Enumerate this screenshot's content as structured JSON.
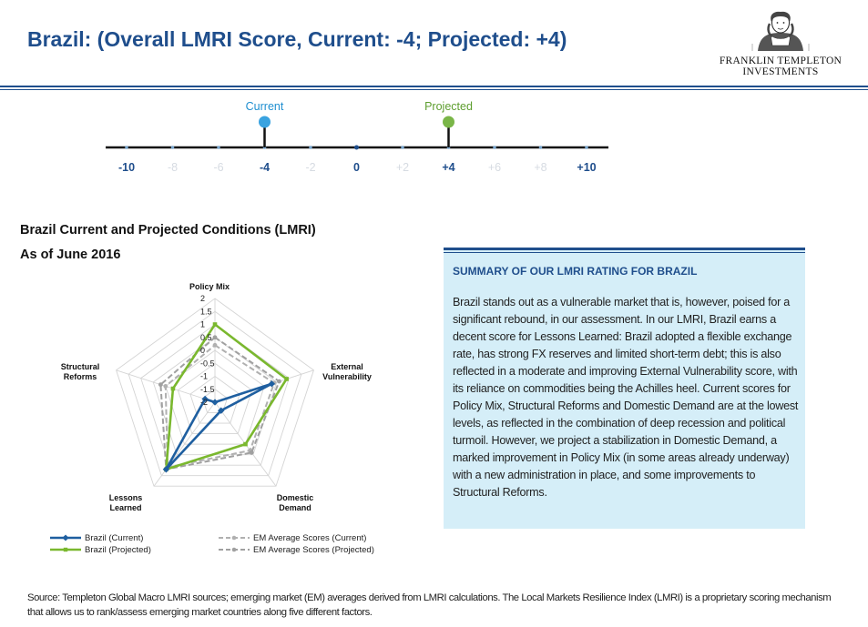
{
  "header": {
    "title": "Brazil: (Overall LMRI Score, Current: -4; Projected: +4)",
    "logo_line1": "FRANKLIN TEMPLETON",
    "logo_line2": "INVESTMENTS"
  },
  "scale": {
    "current_label": "Current",
    "projected_label": "Projected",
    "current_value": -4,
    "projected_value": 4,
    "ticks": [
      "-10",
      "-8",
      "-6",
      "-4",
      "-2",
      "0",
      "+2",
      "+4",
      "+6",
      "+8",
      "+10"
    ],
    "bold_ticks": [
      "-10",
      "-4",
      "0",
      "+4",
      "+10"
    ],
    "colors": {
      "current": "#3aa3e0",
      "projected": "#7ab648"
    }
  },
  "chart_section": {
    "title_line1": "Brazil Current and Projected Conditions (LMRI)",
    "title_line2": "As of June 2016"
  },
  "summary": {
    "heading": "SUMMARY OF OUR LMRI RATING FOR BRAZIL",
    "body": "Brazil stands out as a vulnerable market that is, however, poised for a significant rebound, in our assessment. In our LMRI, Brazil earns a decent score for Lessons Learned: Brazil adopted a flexible exchange rate, has strong FX reserves and limited short-term debt; this is also reflected in a moderate and improving External Vulnerability score, with its reliance on commodities being the Achilles heel. Current scores for Policy Mix, Structural Reforms and Domestic Demand are at the lowest levels, as reflected in the combination of deep recession and political turmoil. However, we project a stabilization in Domestic Demand, a marked improvement in Policy Mix (in some areas already underway) with a new administration in place, and some improvements to Structural Reforms."
  },
  "chart_data": {
    "type": "radar",
    "axes": [
      "Policy Mix",
      "External Vulnerability",
      "Domestic Demand",
      "Lessons Learned",
      "Structural Reforms"
    ],
    "axis_labels": [
      [
        "Policy Mix"
      ],
      [
        "External",
        "Vulnerability"
      ],
      [
        "Domestic",
        "Demand"
      ],
      [
        "Lessons",
        "Learned"
      ],
      [
        "Structural",
        "Reforms"
      ]
    ],
    "tick_labels": [
      "2",
      "1.5",
      "1",
      "0.5",
      "0",
      "-0.5",
      "-1",
      "-1.5",
      "-2"
    ],
    "range": [
      -2,
      2
    ],
    "series": [
      {
        "name": "Brazil (Current)",
        "values": [
          -2.0,
          0.3,
          -1.6,
          1.2,
          -1.6
        ],
        "color": "#1f5fa0",
        "style": "solid-diamond"
      },
      {
        "name": "Brazil (Projected)",
        "values": [
          1.0,
          0.9,
          0.0,
          1.2,
          -0.3
        ],
        "color": "#7ab82e",
        "style": "solid-square"
      },
      {
        "name": "EM Average Scores (Current)",
        "values": [
          0.2,
          0.4,
          0.3,
          1.1,
          0.0
        ],
        "color": "#b0b0b0",
        "style": "dashed-circle"
      },
      {
        "name": "EM Average Scores (Projected)",
        "values": [
          0.5,
          0.6,
          0.4,
          1.2,
          0.2
        ],
        "color": "#a0a0a0",
        "style": "dashed-circle"
      }
    ]
  },
  "footer": {
    "source": "Source: Templeton Global Macro LMRI sources; emerging market (EM) averages derived from LMRI calculations. The Local Markets Resilience Index (LMRI) is a proprietary scoring mechanism that allows us to rank/assess emerging market countries along five different factors."
  }
}
